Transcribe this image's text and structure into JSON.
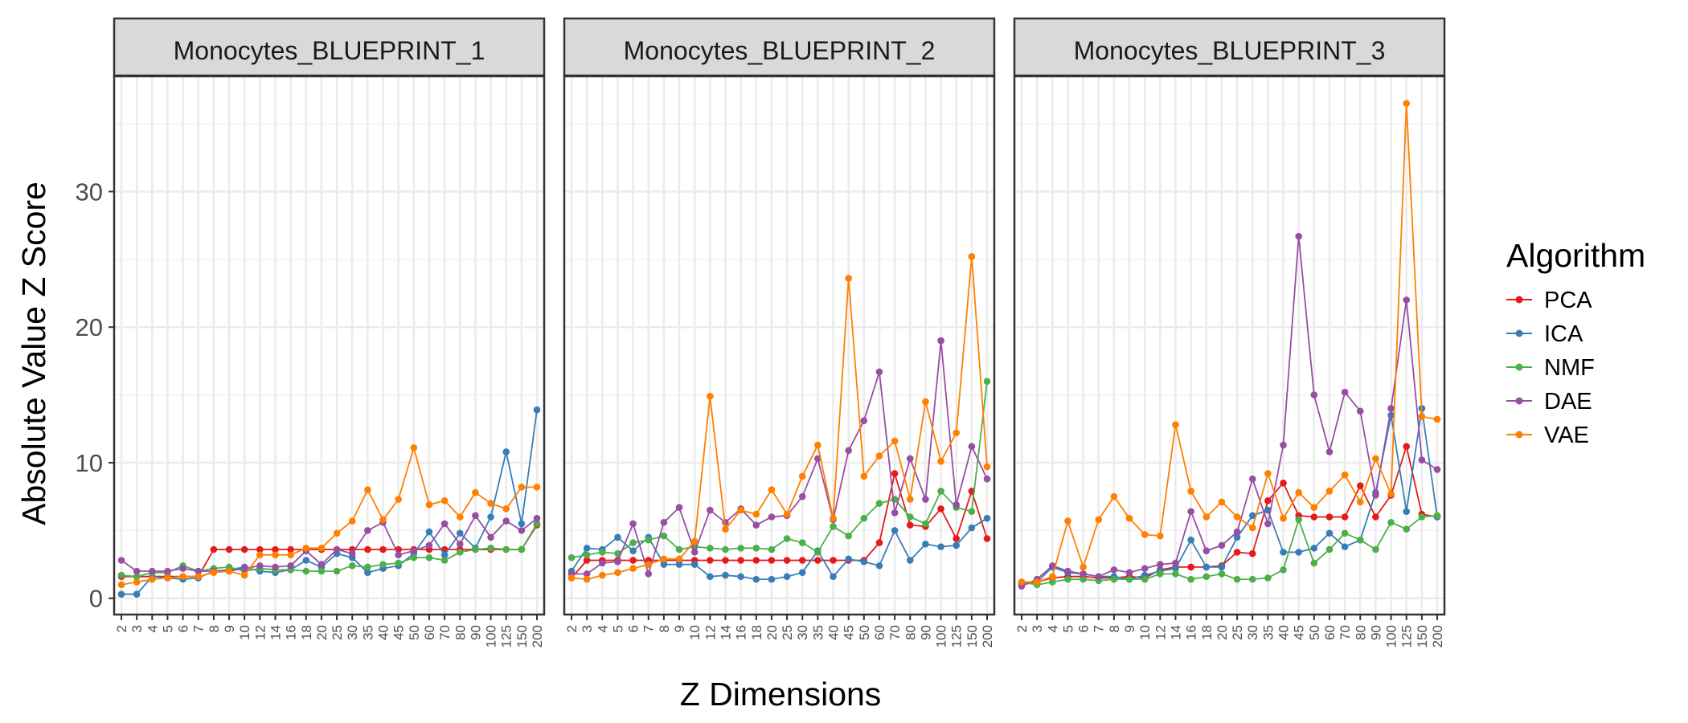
{
  "chart_data": {
    "type": "line",
    "x": [
      "2",
      "3",
      "4",
      "5",
      "6",
      "7",
      "8",
      "9",
      "10",
      "12",
      "14",
      "16",
      "18",
      "20",
      "25",
      "30",
      "35",
      "40",
      "45",
      "50",
      "60",
      "70",
      "80",
      "90",
      "100",
      "125",
      "150",
      "200"
    ],
    "ylim": [
      -1.2,
      38.5
    ],
    "y_ticks": [
      0,
      10,
      20,
      30
    ],
    "y_tick_labels": [
      "0",
      "10",
      "20",
      "30"
    ],
    "xlabel": "Z Dimensions",
    "ylabel": "Absolute Value Z Score",
    "grid": true,
    "legend": {
      "title": "Algorithm",
      "placement": "right",
      "entries": [
        "PCA",
        "ICA",
        "NMF",
        "DAE",
        "VAE"
      ]
    },
    "colors": {
      "PCA": "#e41a1c",
      "ICA": "#377eb8",
      "NMF": "#4daf4a",
      "DAE": "#984ea3",
      "VAE": "#ff7f00"
    },
    "panels": [
      {
        "title": "Monocytes_BLUEPRINT_1",
        "series": [
          {
            "name": "PCA",
            "values": [
              1.6,
              1.6,
              1.6,
              1.6,
              1.6,
              1.6,
              3.6,
              3.6,
              3.6,
              3.6,
              3.6,
              3.6,
              3.6,
              3.6,
              3.6,
              3.6,
              3.6,
              3.6,
              3.6,
              3.6,
              3.6,
              3.6,
              3.6,
              3.6,
              3.6,
              3.6,
              3.6,
              5.4
            ]
          },
          {
            "name": "ICA",
            "values": [
              0.3,
              0.3,
              1.6,
              1.5,
              1.4,
              1.5,
              2.0,
              2.1,
              2.3,
              2.0,
              1.9,
              2.1,
              2.8,
              2.3,
              3.3,
              3.0,
              1.9,
              2.2,
              2.4,
              3.3,
              4.9,
              3.2,
              4.8,
              3.7,
              6.0,
              10.8,
              5.5,
              13.9
            ]
          },
          {
            "name": "NMF",
            "values": [
              1.7,
              1.6,
              1.9,
              1.9,
              2.4,
              2.0,
              2.2,
              2.3,
              2.0,
              2.2,
              2.1,
              2.1,
              2.0,
              2.0,
              2.0,
              2.4,
              2.3,
              2.5,
              2.6,
              3.0,
              3.0,
              2.8,
              3.4,
              3.6,
              3.7,
              3.6,
              3.6,
              5.5
            ]
          },
          {
            "name": "DAE",
            "values": [
              2.8,
              2.0,
              2.0,
              2.0,
              2.2,
              2.0,
              2.0,
              2.0,
              2.2,
              2.4,
              2.3,
              2.4,
              3.5,
              2.5,
              3.6,
              3.3,
              5.0,
              5.6,
              3.2,
              3.5,
              3.9,
              5.5,
              4.0,
              6.1,
              4.5,
              5.7,
              5.0,
              5.9
            ]
          },
          {
            "name": "VAE",
            "values": [
              1.0,
              1.2,
              1.4,
              1.5,
              1.6,
              1.6,
              1.9,
              2.0,
              1.7,
              3.2,
              3.2,
              3.2,
              3.7,
              3.7,
              4.8,
              5.7,
              8.0,
              5.8,
              7.3,
              11.1,
              6.9,
              7.2,
              6.0,
              7.8,
              7.0,
              6.6,
              8.2,
              8.2
            ]
          }
        ]
      },
      {
        "title": "Monocytes_BLUEPRINT_2",
        "series": [
          {
            "name": "PCA",
            "values": [
              1.5,
              2.8,
              2.8,
              2.8,
              2.8,
              2.8,
              2.8,
              2.8,
              2.8,
              2.8,
              2.8,
              2.8,
              2.8,
              2.8,
              2.8,
              2.8,
              2.8,
              2.8,
              2.8,
              2.8,
              4.1,
              9.2,
              5.4,
              5.3,
              6.6,
              4.4,
              7.9,
              4.4
            ]
          },
          {
            "name": "ICA",
            "values": [
              2.0,
              3.7,
              3.6,
              4.5,
              3.5,
              4.5,
              2.5,
              2.5,
              2.5,
              1.6,
              1.7,
              1.6,
              1.4,
              1.4,
              1.6,
              1.9,
              3.5,
              1.6,
              2.9,
              2.7,
              2.4,
              5.0,
              2.8,
              4.0,
              3.8,
              3.9,
              5.2,
              5.9
            ]
          },
          {
            "name": "NMF",
            "values": [
              3.0,
              3.2,
              3.4,
              3.3,
              4.1,
              4.3,
              4.6,
              3.6,
              3.8,
              3.7,
              3.6,
              3.7,
              3.7,
              3.6,
              4.4,
              4.1,
              3.4,
              5.3,
              4.6,
              5.9,
              7.0,
              7.3,
              6.0,
              5.5,
              7.9,
              6.7,
              6.4,
              16.0
            ]
          },
          {
            "name": "DAE",
            "values": [
              1.8,
              1.8,
              2.6,
              2.7,
              5.5,
              1.8,
              5.6,
              6.7,
              3.4,
              6.5,
              5.6,
              6.6,
              5.4,
              6.0,
              6.1,
              7.5,
              10.3,
              5.8,
              10.9,
              13.1,
              16.7,
              6.3,
              10.3,
              7.3,
              19.0,
              6.9,
              11.2,
              8.8
            ]
          },
          {
            "name": "VAE",
            "values": [
              1.5,
              1.4,
              1.7,
              1.9,
              2.2,
              2.5,
              2.9,
              2.9,
              4.2,
              14.9,
              5.1,
              6.5,
              6.2,
              8.0,
              6.2,
              9.0,
              11.3,
              5.9,
              23.6,
              9.0,
              10.5,
              11.6,
              7.3,
              14.5,
              10.1,
              12.2,
              25.2,
              9.7
            ]
          }
        ]
      },
      {
        "title": "Monocytes_BLUEPRINT_3",
        "series": [
          {
            "name": "PCA",
            "values": [
              1.1,
              1.2,
              1.5,
              1.6,
              1.6,
              1.5,
              1.5,
              1.6,
              1.5,
              2.1,
              2.3,
              2.3,
              2.3,
              2.4,
              3.4,
              3.3,
              7.2,
              8.5,
              6.1,
              6.0,
              6.0,
              6.0,
              8.3,
              6.0,
              7.6,
              11.2,
              6.2,
              6.0
            ]
          },
          {
            "name": "ICA",
            "values": [
              1.0,
              1.2,
              2.3,
              1.9,
              1.8,
              1.6,
              1.6,
              1.4,
              1.7,
              2.0,
              2.2,
              4.3,
              2.3,
              2.3,
              4.5,
              6.1,
              6.5,
              3.4,
              3.4,
              3.7,
              4.8,
              3.8,
              4.3,
              7.8,
              13.5,
              6.4,
              14.0,
              6.0
            ]
          },
          {
            "name": "NMF",
            "values": [
              1.2,
              1.0,
              1.2,
              1.4,
              1.4,
              1.3,
              1.4,
              1.4,
              1.4,
              1.8,
              1.8,
              1.4,
              1.6,
              1.8,
              1.4,
              1.4,
              1.5,
              2.1,
              5.8,
              2.6,
              3.6,
              4.8,
              4.3,
              3.6,
              5.6,
              5.1,
              6.0,
              6.1
            ]
          },
          {
            "name": "DAE",
            "values": [
              0.9,
              1.4,
              2.4,
              2.0,
              1.8,
              1.6,
              2.1,
              1.9,
              2.2,
              2.5,
              2.6,
              6.4,
              3.5,
              3.9,
              4.9,
              8.8,
              5.5,
              11.3,
              26.7,
              15.0,
              10.8,
              15.2,
              13.8,
              7.6,
              14.0,
              22.0,
              10.2,
              9.5
            ]
          },
          {
            "name": "VAE",
            "values": [
              1.2,
              1.2,
              1.6,
              5.7,
              2.3,
              5.8,
              7.5,
              5.9,
              4.7,
              4.6,
              12.8,
              7.9,
              6.0,
              7.1,
              6.0,
              5.2,
              9.2,
              5.9,
              7.8,
              6.7,
              7.9,
              9.1,
              7.1,
              10.3,
              7.7,
              36.5,
              13.4,
              13.2
            ]
          }
        ]
      }
    ]
  }
}
